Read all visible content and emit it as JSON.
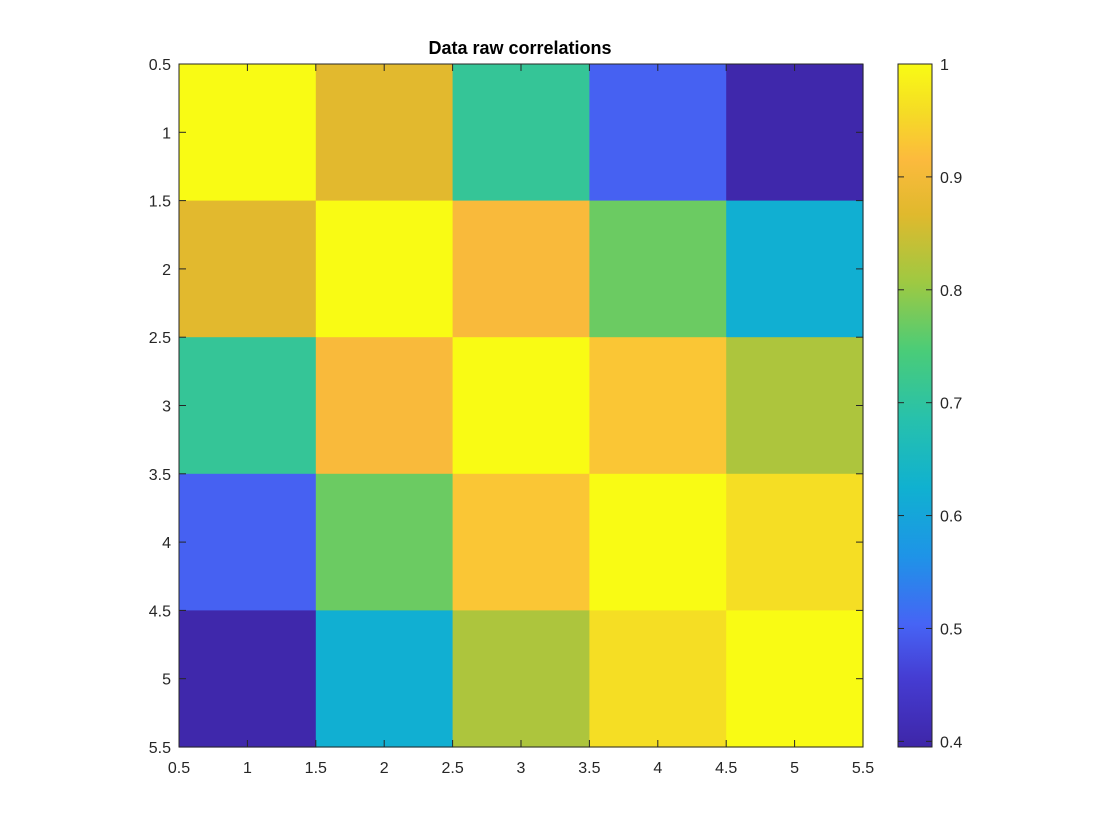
{
  "chart_data": {
    "type": "heatmap",
    "title": "Data raw correlations",
    "xlabel": "",
    "ylabel": "",
    "rows": [
      1,
      2,
      3,
      4,
      5
    ],
    "cols": [
      1,
      2,
      3,
      4,
      5
    ],
    "values": [
      [
        1.0,
        0.87,
        0.71,
        0.5,
        0.4
      ],
      [
        0.87,
        1.0,
        0.91,
        0.77,
        0.62
      ],
      [
        0.71,
        0.91,
        1.0,
        0.93,
        0.82
      ],
      [
        0.5,
        0.77,
        0.93,
        1.0,
        0.96
      ],
      [
        0.4,
        0.62,
        0.82,
        0.96,
        1.0
      ]
    ],
    "xlim": [
      0.5,
      5.5
    ],
    "ylim": [
      0.5,
      5.5
    ],
    "y_reversed": true,
    "xticks": [
      "0.5",
      "1",
      "1.5",
      "2",
      "2.5",
      "3",
      "3.5",
      "4",
      "4.5",
      "5",
      "5.5"
    ],
    "yticks": [
      "0.5",
      "1",
      "1.5",
      "2",
      "2.5",
      "3",
      "3.5",
      "4",
      "4.5",
      "5",
      "5.5"
    ],
    "colorbar": {
      "colormap": "parula",
      "limits": [
        0.395,
        1.0
      ],
      "ticks": [
        "0.4",
        "0.5",
        "0.6",
        "0.7",
        "0.8",
        "0.9",
        "1"
      ]
    },
    "grid": false
  }
}
